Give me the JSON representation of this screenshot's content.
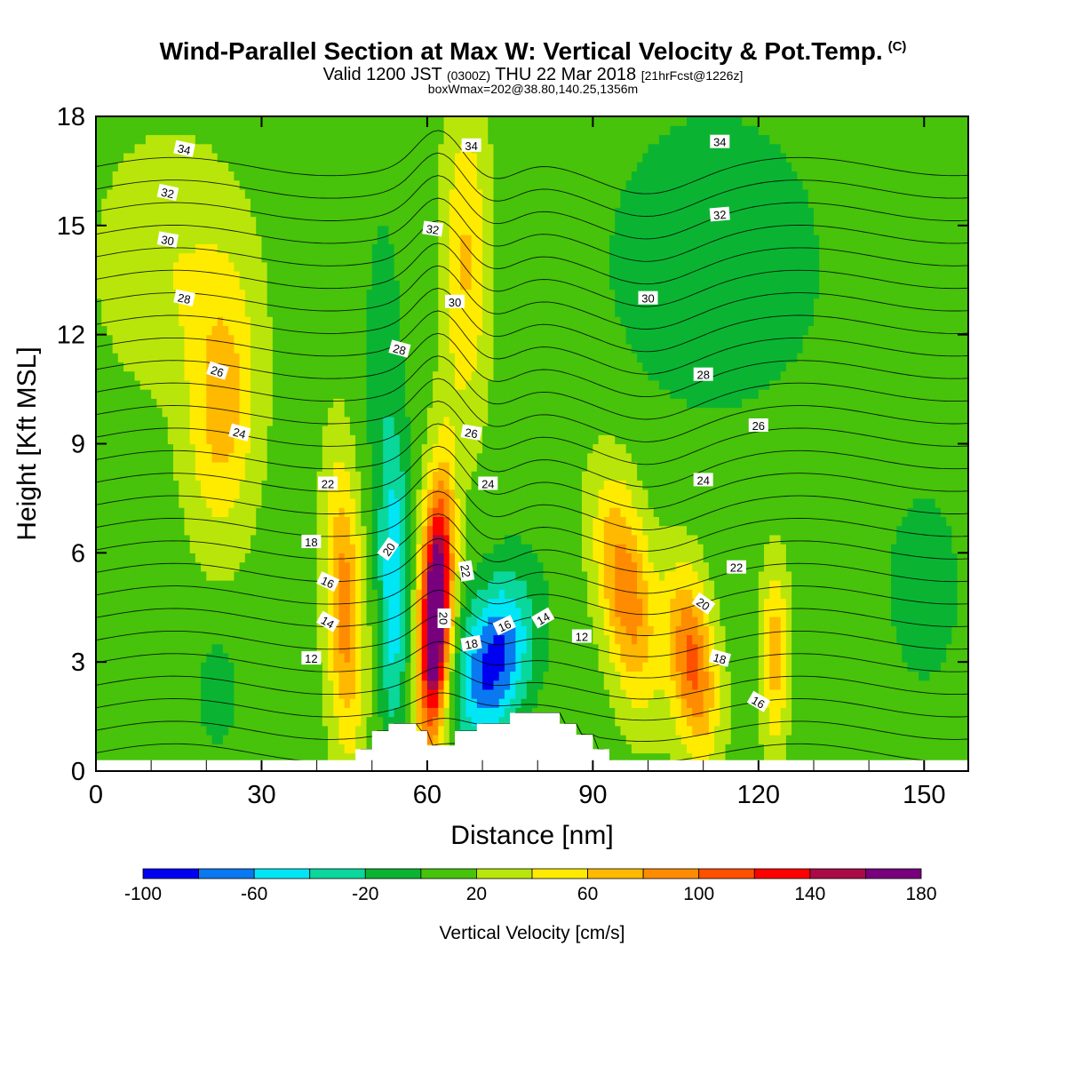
{
  "header": {
    "title": "Wind-Parallel Section at Max W: Vertical Velocity & Pot.Temp.",
    "copyright": "(C)",
    "valid_prefix": "Valid 1200 JST",
    "valid_utc": "(0300Z)",
    "valid_date": "THU 22 Mar 2018",
    "valid_fcst": "[21hrFcst@1226z]",
    "boxwmax": "boxWmax=202@38.80,140.25,1356m"
  },
  "chart_data": {
    "type": "heatmap",
    "title": "Wind-Parallel Section at Max W: Vertical Velocity & Pot.Temp.",
    "xlabel": "Distance [nm]",
    "ylabel": "Height [Kft MSL]",
    "xlim": [
      0,
      158
    ],
    "ylim": [
      0,
      18
    ],
    "x_ticks": [
      0,
      30,
      60,
      90,
      120,
      150
    ],
    "y_ticks": [
      0,
      3,
      6,
      9,
      12,
      15,
      18
    ],
    "x_tick_labels": [
      "0",
      "30",
      "60",
      "90",
      "120",
      "150"
    ],
    "y_tick_labels": [
      "0",
      "3",
      "6",
      "9",
      "12",
      "15",
      "18"
    ],
    "colorbar": {
      "label": "Vertical Velocity [cm/s]",
      "min": -100,
      "max": 180,
      "step": 20,
      "tick_values": [
        -100,
        -60,
        -20,
        20,
        60,
        100,
        140,
        180
      ],
      "tick_labels": [
        "-100",
        "-60",
        "-20",
        "20",
        "60",
        "100",
        "140",
        "180"
      ],
      "colors": [
        "#0000f0",
        "#0a78f0",
        "#00e6f5",
        "#0ad79b",
        "#0ab432",
        "#46c30a",
        "#b9e60a",
        "#ffeb00",
        "#ffb900",
        "#ff8c00",
        "#ff5000",
        "#ff0000",
        "#aa0a46",
        "#78007d"
      ]
    },
    "background_value": 10,
    "w_features": [
      {
        "x": 23,
        "y": 10,
        "sx": 4.5,
        "sy": 2.6,
        "w": 58,
        "tilt": 0.15
      },
      {
        "x": 13,
        "y": 14,
        "sx": 9,
        "sy": 2.5,
        "w": 28,
        "tilt": 0
      },
      {
        "x": 67,
        "y": 14,
        "sx": 3,
        "sy": 3.2,
        "w": 52,
        "tilt": 0
      },
      {
        "x": 45,
        "y": 4.5,
        "sx": 2.4,
        "sy": 2.8,
        "w": 82,
        "tilt": -0.2
      },
      {
        "x": 54,
        "y": 5,
        "sx": 1.9,
        "sy": 2.8,
        "w": -64,
        "tilt": 0
      },
      {
        "x": 61.5,
        "y": 4.3,
        "sx": 2.0,
        "sy": 2.5,
        "w": 202,
        "tilt": 0.25
      },
      {
        "x": 72,
        "y": 3.0,
        "sx": 4.5,
        "sy": 1.6,
        "w": -100,
        "tilt": 1.0
      },
      {
        "x": 96,
        "y": 5.0,
        "sx": 3.5,
        "sy": 2.2,
        "w": 86,
        "tilt": -0.8
      },
      {
        "x": 108,
        "y": 3.0,
        "sx": 3.0,
        "sy": 1.8,
        "w": 96,
        "tilt": -0.6
      },
      {
        "x": 123,
        "y": 3.2,
        "sx": 1.8,
        "sy": 1.8,
        "w": 62,
        "tilt": 0
      },
      {
        "x": 112,
        "y": 14,
        "sx": 15,
        "sy": 3.2,
        "w": -22,
        "tilt": 0
      },
      {
        "x": 52,
        "y": 11,
        "sx": 2.5,
        "sy": 3.5,
        "w": -20,
        "tilt": 0
      },
      {
        "x": 150,
        "y": 5,
        "sx": 10,
        "sy": 4,
        "w": -12,
        "tilt": 0
      },
      {
        "x": 22,
        "y": 2.2,
        "sx": 2.5,
        "sy": 1.2,
        "w": -22,
        "tilt": 0
      }
    ],
    "terrain": [
      [
        47,
        0.6
      ],
      [
        50,
        1.1
      ],
      [
        53,
        1.3
      ],
      [
        58,
        1.1
      ],
      [
        60,
        0.7
      ],
      [
        63,
        0.7
      ],
      [
        65,
        1.1
      ],
      [
        69,
        1.3
      ],
      [
        75,
        1.6
      ],
      [
        80,
        1.6
      ],
      [
        84,
        1.3
      ],
      [
        87,
        1.0
      ],
      [
        90,
        0.6
      ],
      [
        93,
        0.3
      ]
    ],
    "theta_levels": [
      10,
      11,
      12,
      13,
      14,
      15,
      16,
      17,
      18,
      19,
      20,
      21,
      22,
      23,
      24,
      25,
      26,
      27,
      28,
      29,
      30,
      31,
      32,
      33,
      34,
      35,
      36
    ],
    "theta_labels": [
      {
        "text": "34",
        "x": 16,
        "y": 17.1,
        "rot": 12
      },
      {
        "text": "32",
        "x": 13,
        "y": 15.9,
        "rot": 12
      },
      {
        "text": "30",
        "x": 13,
        "y": 14.6,
        "rot": 10
      },
      {
        "text": "28",
        "x": 16,
        "y": 13.0,
        "rot": 12
      },
      {
        "text": "26",
        "x": 22,
        "y": 11.0,
        "rot": 18
      },
      {
        "text": "24",
        "x": 26,
        "y": 9.3,
        "rot": 15
      },
      {
        "text": "22",
        "x": 42,
        "y": 7.9,
        "rot": 0
      },
      {
        "text": "18",
        "x": 39,
        "y": 6.3,
        "rot": 0
      },
      {
        "text": "16",
        "x": 42,
        "y": 5.2,
        "rot": 25
      },
      {
        "text": "14",
        "x": 42,
        "y": 4.1,
        "rot": 30
      },
      {
        "text": "12",
        "x": 39,
        "y": 3.1,
        "rot": 0
      },
      {
        "text": "20",
        "x": 53,
        "y": 6.1,
        "rot": -55
      },
      {
        "text": "20",
        "x": 63,
        "y": 4.2,
        "rot": 90
      },
      {
        "text": "22",
        "x": 67,
        "y": 5.5,
        "rot": 80
      },
      {
        "text": "18",
        "x": 68,
        "y": 3.5,
        "rot": -10
      },
      {
        "text": "16",
        "x": 74,
        "y": 4.0,
        "rot": -25
      },
      {
        "text": "14",
        "x": 81,
        "y": 4.2,
        "rot": -30
      },
      {
        "text": "12",
        "x": 88,
        "y": 3.7,
        "rot": 0
      },
      {
        "text": "34",
        "x": 68,
        "y": 17.2,
        "rot": 0
      },
      {
        "text": "32",
        "x": 61,
        "y": 14.9,
        "rot": 8
      },
      {
        "text": "30",
        "x": 65,
        "y": 12.9,
        "rot": 0
      },
      {
        "text": "28",
        "x": 55,
        "y": 11.6,
        "rot": 15
      },
      {
        "text": "26",
        "x": 68,
        "y": 9.3,
        "rot": 10
      },
      {
        "text": "24",
        "x": 71,
        "y": 7.9,
        "rot": 0
      },
      {
        "text": "34",
        "x": 113,
        "y": 17.3,
        "rot": 0
      },
      {
        "text": "32",
        "x": 113,
        "y": 15.3,
        "rot": -5
      },
      {
        "text": "30",
        "x": 100,
        "y": 13.0,
        "rot": 0
      },
      {
        "text": "28",
        "x": 110,
        "y": 10.9,
        "rot": 0
      },
      {
        "text": "26",
        "x": 120,
        "y": 9.5,
        "rot": 0
      },
      {
        "text": "24",
        "x": 110,
        "y": 8.0,
        "rot": 0
      },
      {
        "text": "22",
        "x": 116,
        "y": 5.6,
        "rot": 0
      },
      {
        "text": "20",
        "x": 110,
        "y": 4.6,
        "rot": 35
      },
      {
        "text": "18",
        "x": 113,
        "y": 3.1,
        "rot": 15
      },
      {
        "text": "16",
        "x": 120,
        "y": 1.9,
        "rot": 30
      }
    ]
  }
}
